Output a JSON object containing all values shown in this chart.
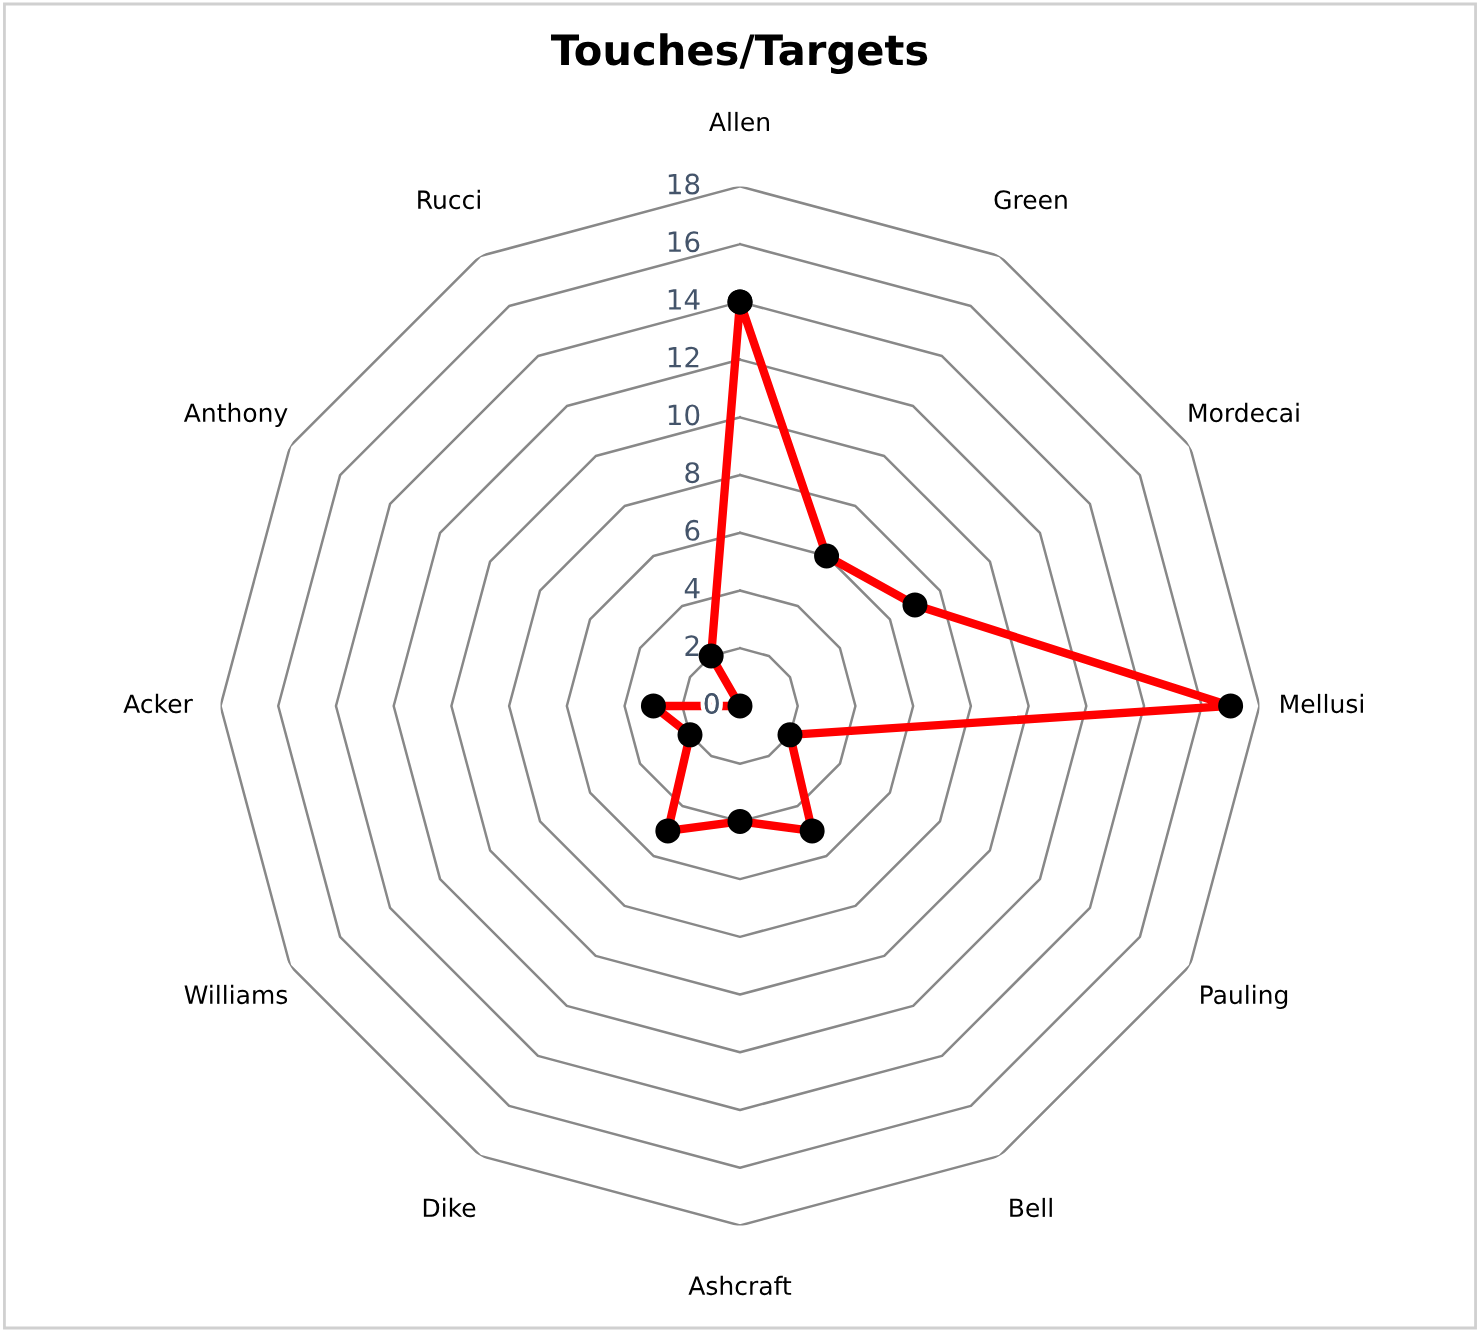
{
  "chart_data": {
    "type": "radar",
    "title": "Touches/Targets",
    "categories": [
      "Allen",
      "Green",
      "Mordecai",
      "Mellusi",
      "Pauling",
      "Bell",
      "Ashcraft",
      "Dike",
      "Williams",
      "Acker",
      "Anthony",
      "Rucci"
    ],
    "series": [
      {
        "color": "#ff0000",
        "values": [
          14,
          6,
          7,
          17,
          2,
          5,
          4,
          5,
          2,
          3,
          0,
          2
        ]
      }
    ],
    "ylim": [
      0,
      18
    ],
    "yticks": [
      0,
      2,
      4,
      6,
      8,
      10,
      12,
      14,
      16,
      18
    ],
    "grid": true,
    "marker": "circle",
    "line_style": "solid"
  }
}
